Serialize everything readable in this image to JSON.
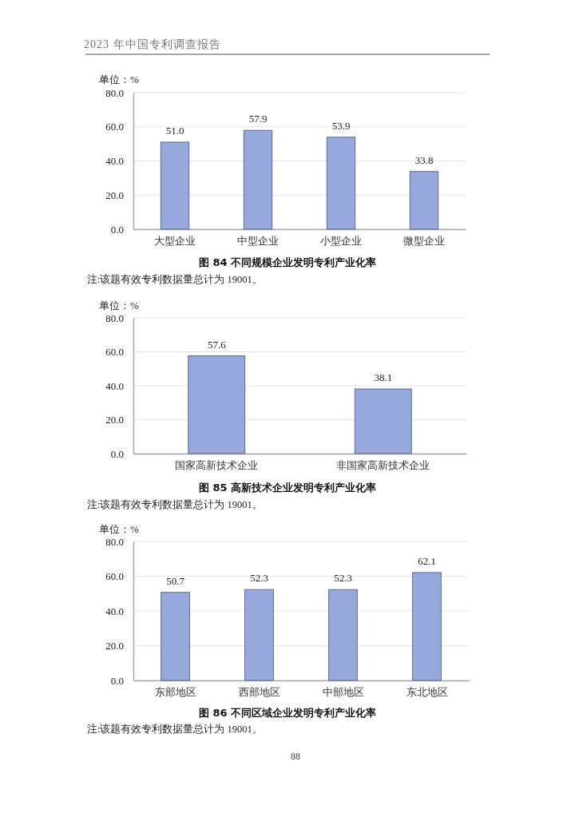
{
  "chart_data": [
    {
      "type": "bar",
      "title": "图 84 不同规模企业发明专利产业化率",
      "ylabel": "单位：%",
      "annotations": [
        "2023 年中国专利调查报告",
        "注:该题有效专利数据量总计为 19001。"
      ],
      "categories": [
        "大型企业",
        "中型企业",
        "小型企业",
        "微型企业"
      ],
      "values": [
        51.0,
        57.9,
        53.9,
        33.8
      ],
      "value_labels": [
        "51.0",
        "57.9",
        "53.9",
        "33.8"
      ],
      "color": "#97a8dd",
      "ylim": [
        0,
        80
      ],
      "yticks": [
        {
          "value": 0,
          "label": "0.0"
        },
        {
          "value": 20,
          "label": "20.0"
        },
        {
          "value": 40,
          "label": "40.0"
        },
        {
          "value": 60,
          "label": "60.0"
        },
        {
          "value": 80,
          "label": "80.0"
        }
      ],
      "grid": "y"
    },
    {
      "type": "bar",
      "title": "图 85 高新技术企业发明专利产业化率",
      "ylabel": "单位：%",
      "annotations": [
        "注:该题有效专利数据量总计为 19001。"
      ],
      "categories": [
        "国家高新技术企业",
        "非国家高新技术企业"
      ],
      "values": [
        57.6,
        38.1
      ],
      "value_labels": [
        "57.6",
        "38.1"
      ],
      "color": "#97a8dd",
      "ylim": [
        0,
        80
      ],
      "yticks": [
        {
          "value": 0,
          "label": "0.0"
        },
        {
          "value": 20,
          "label": "20.0"
        },
        {
          "value": 40,
          "label": "40.0"
        },
        {
          "value": 60,
          "label": "60.0"
        },
        {
          "value": 80,
          "label": "80.0"
        }
      ],
      "grid": "y"
    },
    {
      "type": "bar",
      "title": "图 86 不同区域企业发明专利产业化率",
      "ylabel": "单位：%",
      "annotations": [
        "注:该题有效专利数据量总计为 19001。",
        "88"
      ],
      "categories": [
        "东部地区",
        "西部地区",
        "中部地区",
        "东北地区"
      ],
      "values": [
        50.7,
        52.3,
        52.3,
        62.1
      ],
      "value_labels": [
        "50.7",
        "52.3",
        "52.3",
        "62.1"
      ],
      "color": "#97a8dd",
      "ylim": [
        0,
        80
      ],
      "yticks": [
        {
          "value": 0,
          "label": "0.0"
        },
        {
          "value": 20,
          "label": "20.0"
        },
        {
          "value": 40,
          "label": "40.0"
        },
        {
          "value": 60,
          "label": "60.0"
        },
        {
          "value": 80,
          "label": "80.0"
        }
      ],
      "grid": "y"
    }
  ]
}
